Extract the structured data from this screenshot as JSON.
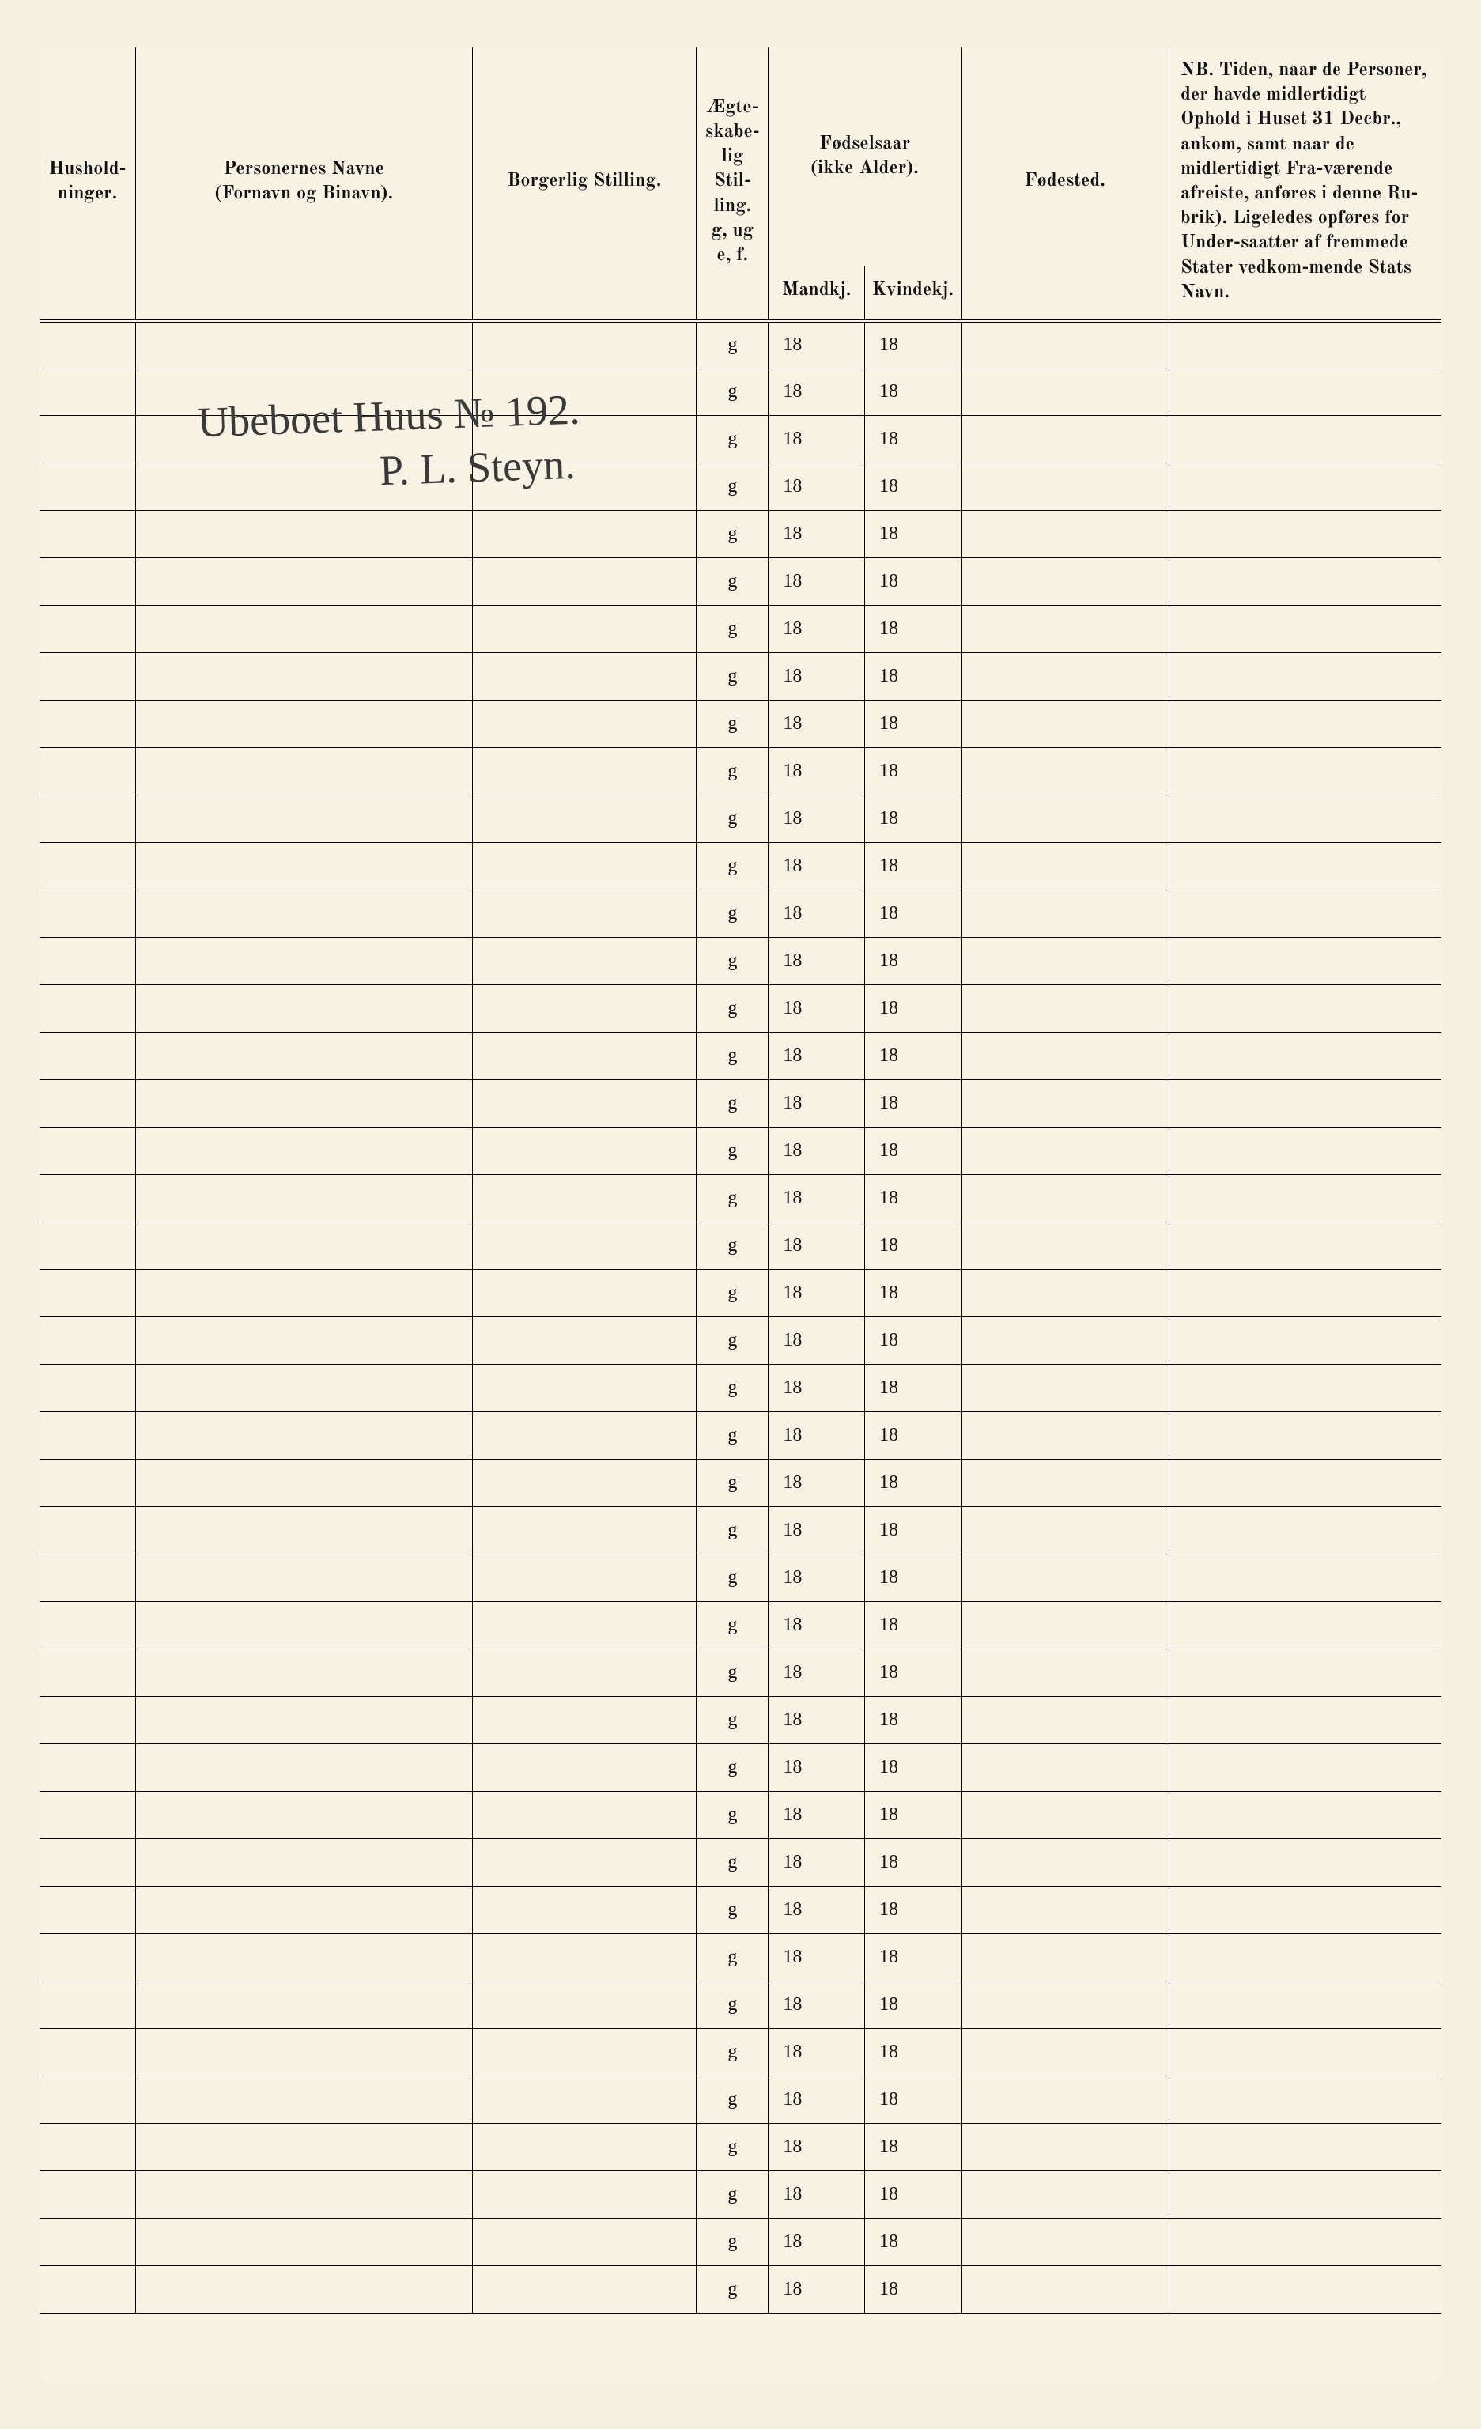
{
  "headers": {
    "husholdninger": "Hushold-\nninger.",
    "personernes_navne": "Personernes Navne\n(Fornavn og Binavn).",
    "borgerlig_stilling": "Borgerlig Stilling.",
    "aegteskabelig": "Ægte-\nskabe-\nlig\nStil-\nling.\ng, ug\ne, f.",
    "fodselsaar_group": "Fødselsaar\n(ikke Alder).",
    "mandkj": "Mandkj.",
    "kvindekj": "Kvindekj.",
    "fodested": "Fødested.",
    "nb_bold": "NB.",
    "nb_text": " Tiden, naar de Personer, der havde midlertidigt Ophold i Huset 31 Decbr., ankom, samt naar de midlertidigt Fra-værende afreiste, anføres i denne Ru-brik). Ligeledes opføres for Under-saatter af fremmede Stater vedkom-mende Stats Navn."
  },
  "prefill": {
    "aegte": "g",
    "year_prefix": "18"
  },
  "row_count": 42,
  "handwriting": {
    "line1": "Ubeboet   Huus № 192.",
    "line2": "P. L. Steyn."
  },
  "colors": {
    "paper": "#f7f2e4",
    "ink": "#111111",
    "rule": "#000000"
  },
  "fontsizes": {
    "header": 24,
    "nb": 19,
    "body": 24,
    "handwriting": 54
  }
}
